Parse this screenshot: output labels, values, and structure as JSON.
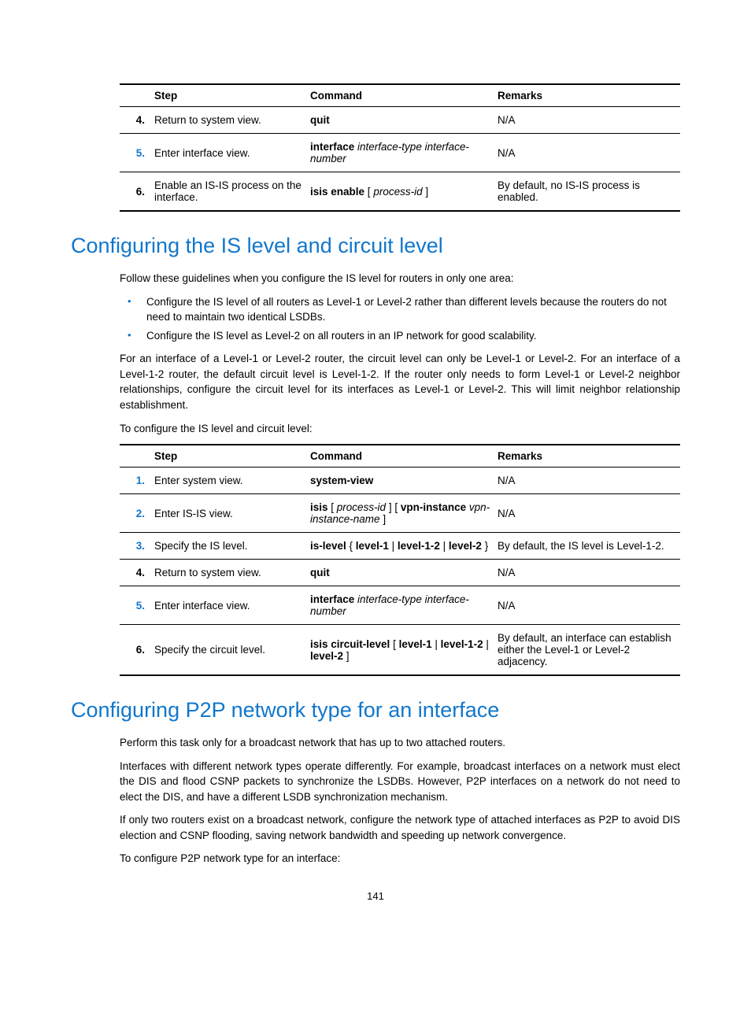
{
  "tables": {
    "t1": {
      "headers": {
        "step": "Step",
        "command": "Command",
        "remarks": "Remarks"
      },
      "rows": [
        {
          "num": "4.",
          "num_color": "black",
          "step": "Return to system view.",
          "cmd_bold1": "quit",
          "remarks": "N/A"
        },
        {
          "num": "5.",
          "num_color": "blue",
          "step": "Enter interface view.",
          "cmd_bold1": "interface",
          "cmd_it1": " interface-type interface-number",
          "remarks": "N/A"
        },
        {
          "num": "6.",
          "num_color": "black",
          "step": "Enable an IS-IS process on the interface.",
          "cmd_bold1": "isis enable",
          "cmd_plain1": " [ ",
          "cmd_it1": "process-id",
          "cmd_plain2": " ]",
          "remarks": "By default, no IS-IS process is enabled."
        }
      ]
    },
    "t2": {
      "headers": {
        "step": "Step",
        "command": "Command",
        "remarks": "Remarks"
      },
      "rows": [
        {
          "num": "1.",
          "num_color": "blue",
          "step": "Enter system view.",
          "cmd_bold1": "system-view",
          "remarks": "N/A"
        },
        {
          "num": "2.",
          "num_color": "blue",
          "step": "Enter IS-IS view.",
          "cmd_bold1": "isis",
          "cmd_plain1": " [ ",
          "cmd_it1": "process-id",
          "cmd_plain2": " ] [ ",
          "cmd_bold2": "vpn-instance",
          "cmd_it2": " vpn-instance-name",
          "cmd_plain3": " ]",
          "remarks": "N/A"
        },
        {
          "num": "3.",
          "num_color": "blue",
          "step": "Specify the IS level.",
          "cmd_bold1": "is-level",
          "cmd_plain1": " { ",
          "cmd_bold2": "level-1",
          "cmd_plain2": " | ",
          "cmd_bold3": "level-1-2",
          "cmd_plain3": " | ",
          "cmd_bold4": "level-2",
          "cmd_plain4": " }",
          "remarks": "By default, the IS level is Level-1-2."
        },
        {
          "num": "4.",
          "num_color": "black",
          "step": "Return to system view.",
          "cmd_bold1": "quit",
          "remarks": "N/A"
        },
        {
          "num": "5.",
          "num_color": "blue",
          "step": "Enter interface view.",
          "cmd_bold1": "interface",
          "cmd_it1": " interface-type interface-number",
          "remarks": "N/A"
        },
        {
          "num": "6.",
          "num_color": "black",
          "step": "Specify the circuit level.",
          "cmd_bold1": "isis circuit-level",
          "cmd_plain1": " [ ",
          "cmd_bold2": "level-1",
          "cmd_plain2": " | ",
          "cmd_bold3": "level-1-2",
          "cmd_plain3": " | ",
          "cmd_bold4": "level-2",
          "cmd_plain4": " ]",
          "remarks": "By default, an interface can establish either the Level-1 or Level-2 adjacency."
        }
      ]
    }
  },
  "section1": {
    "title": "Configuring the IS level and circuit level",
    "p_intro": "Follow these guidelines when you configure the IS level for routers in only one area:",
    "bullets": [
      "Configure the IS level of all routers as Level-1 or Level-2 rather than different levels because the routers do not need to maintain two identical LSDBs.",
      "Configure the IS level as Level-2 on all routers in an IP network for good scalability."
    ],
    "p_body": "For an interface of a Level-1 or Level-2 router, the circuit level can only be Level-1 or Level-2. For an interface of a Level-1-2 router, the default circuit level is Level-1-2. If the router only needs to form Level-1 or Level-2 neighbor relationships, configure the circuit level for its interfaces as Level-1 or Level-2. This will limit neighbor relationship establishment.",
    "p_lead": "To configure the IS level and circuit level:"
  },
  "section2": {
    "title": "Configuring P2P network type for an interface",
    "p1": "Perform this task only for a broadcast network that has up to two attached routers.",
    "p2": "Interfaces with different network types operate differently. For example, broadcast interfaces on a network must elect the DIS and flood CSNP packets to synchronize the LSDBs. However, P2P interfaces on a network do not need to elect the DIS, and have a different LSDB synchronization mechanism.",
    "p3": "If only two routers exist on a broadcast network, configure the network type of attached interfaces as P2P to avoid DIS election and CSNP flooding, saving network bandwidth and speeding up network convergence.",
    "p4": "To configure P2P network type for an interface:"
  },
  "page_number": "141"
}
